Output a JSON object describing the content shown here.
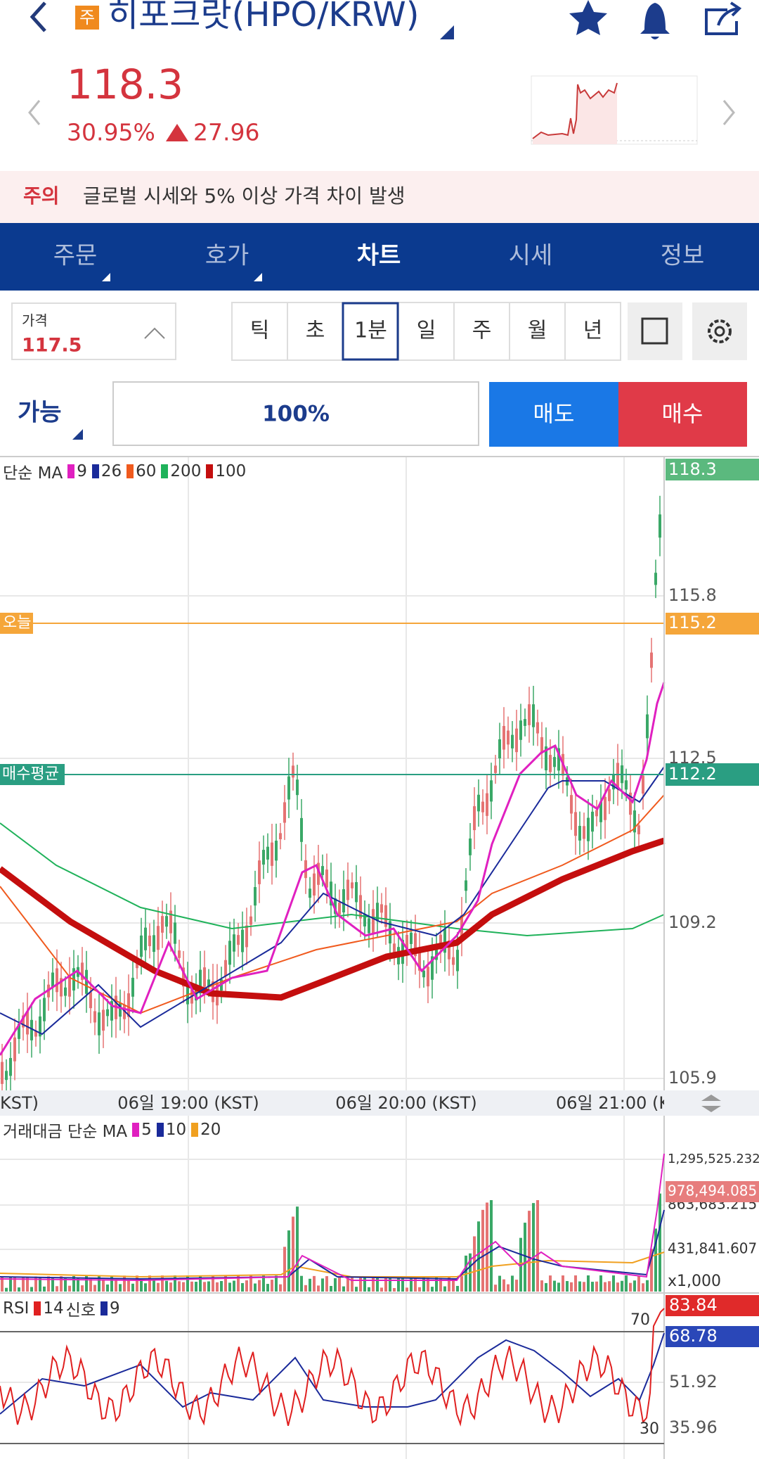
{
  "header": {
    "badge": "주",
    "title": "히포크랏(HPO/KRW)"
  },
  "price": {
    "current": "118.3",
    "change_rate": "30.95%",
    "change": "27.96"
  },
  "notice": {
    "label": "주의",
    "text": "글로벌 시세와 5% 이상 가격 차이 발생"
  },
  "tabs": [
    "주문",
    "호가",
    "차트",
    "시세",
    "정보"
  ],
  "price_input": {
    "label": "가격",
    "value": "117.5"
  },
  "intervals": [
    "틱",
    "초",
    "1분",
    "일",
    "주",
    "월",
    "년"
  ],
  "order": {
    "available": "가능",
    "ratio": "100%",
    "sell": "매도",
    "buy": "매수"
  },
  "main_chart": {
    "legend_title": "단순 MA",
    "ma": [
      {
        "period": "9",
        "color": "#e020c0"
      },
      {
        "period": "26",
        "color": "#1a2a9a"
      },
      {
        "period": "60",
        "color": "#f05a1e"
      },
      {
        "period": "200",
        "color": "#1fb25a"
      },
      {
        "period": "100",
        "color": "#c40e0e"
      }
    ],
    "axis": [
      "118.3",
      "115.8",
      "115.2",
      "112.5",
      "112.2",
      "109.2",
      "105.9"
    ],
    "today": "오늘",
    "avg": "매수평균"
  },
  "time_axis": [
    "KST)",
    "06일 19:00 (KST)",
    "06일 20:00 (KST)",
    "06일 21:00 (K"
  ],
  "volume": {
    "legend_title": "거래대금 단순 MA",
    "ma": [
      {
        "period": "5",
        "color": "#e020c0"
      },
      {
        "period": "10",
        "color": "#1a2a9a"
      },
      {
        "period": "20",
        "color": "#f0a020"
      }
    ],
    "axis": [
      "1,295,525.232",
      "978,494.085",
      "863,683.215",
      "431,841.607",
      "x1,000"
    ]
  },
  "rsi": {
    "legend_title": "RSI",
    "period": "14",
    "period_color": "#e02020",
    "signal_label": "신호",
    "signal_period": "9",
    "signal_color": "#1a2a9a",
    "axis": [
      "70",
      "83.84",
      "68.78",
      "51.92",
      "35.96",
      "30"
    ]
  }
}
